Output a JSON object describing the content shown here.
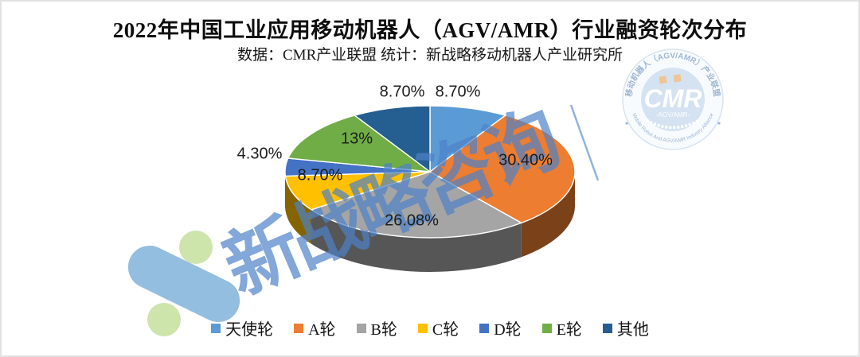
{
  "header": {
    "title": "2022年中国工业应用移动机器人（AGV/AMR）行业融资轮次分布",
    "subtitle": "数据：CMR产业联盟 统计：新战略移动机器人产业研究所"
  },
  "chart_data": {
    "type": "pie",
    "style": "3d-pie",
    "title": "2022年中国工业应用移动机器人（AGV/AMR）行业融资轮次分布",
    "categories": [
      "天使轮",
      "A轮",
      "B轮",
      "C轮",
      "D轮",
      "E轮",
      "其他"
    ],
    "values": [
      8.7,
      30.4,
      26.08,
      8.7,
      4.3,
      13,
      8.7
    ],
    "data_labels": [
      "8.70%",
      "30.40%",
      "26.08%",
      "8.70%",
      "4.30%",
      "13%",
      "8.70%"
    ],
    "colors": [
      "#5B9BD5",
      "#ED7D31",
      "#A5A5A5",
      "#FFC000",
      "#4472C4",
      "#70AD47",
      "#255E91"
    ],
    "start_angle_deg": 0,
    "direction": "clockwise",
    "legend_position": "bottom"
  },
  "watermarks": {
    "diagonal_text": "新战略咨询",
    "badge": {
      "acronym": "CMR",
      "sub_label": "-AGV/AMR-",
      "ring_top": "移动机器人（AGV/AMR）产业联盟",
      "ring_bottom": "Mobile Robot And AGV/AMR Industry Alliance"
    }
  }
}
